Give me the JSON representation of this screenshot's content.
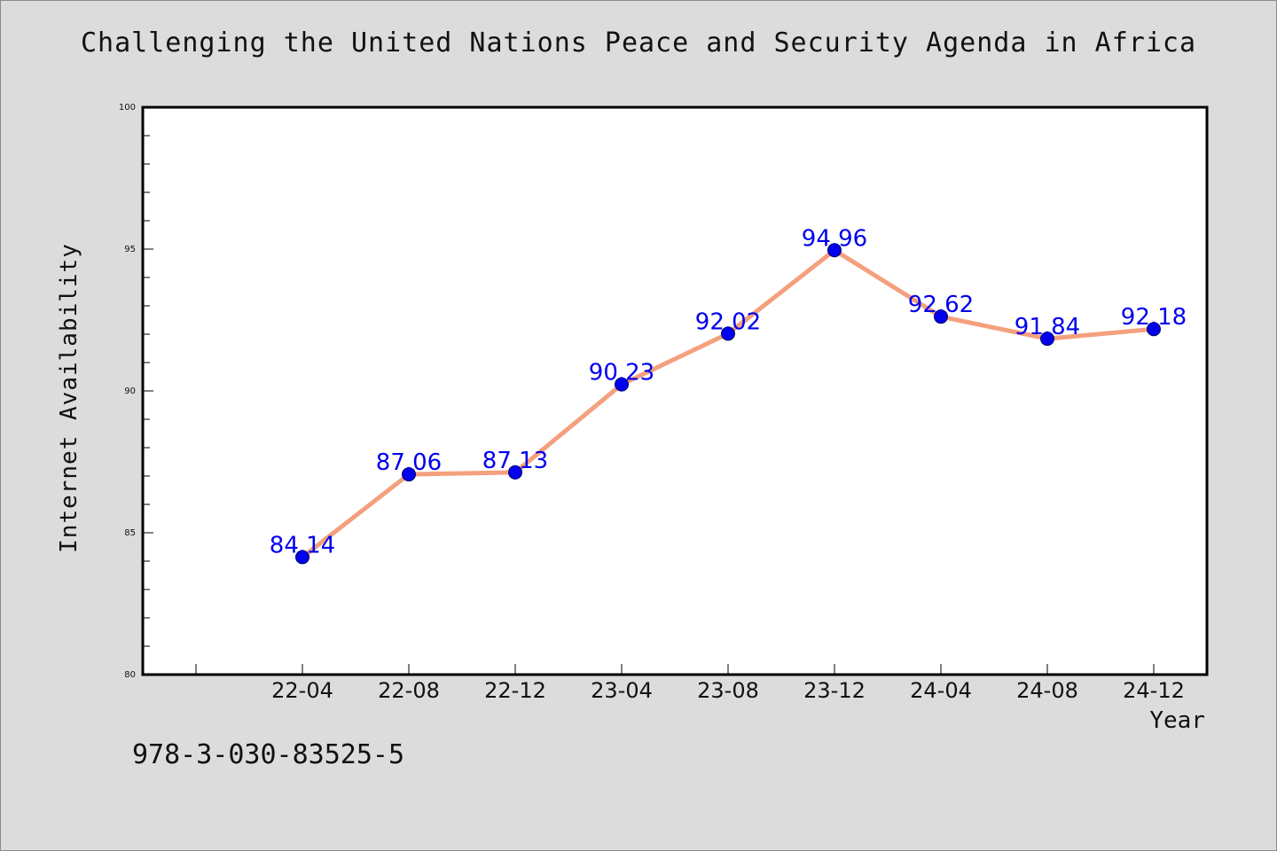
{
  "title": "Challenging the United Nations Peace and Security Agenda in Africa",
  "footer_text": "978-3-030-83525-5",
  "colors": {
    "background": "#dcdcdc",
    "plot_background": "#ffffff",
    "line": "#f4a07e",
    "marker": "#0000ee",
    "data_label": "#0000ee",
    "text": "#111111"
  },
  "chart_data": {
    "type": "line",
    "title": "Challenging the United Nations Peace and Security Agenda in Africa",
    "xlabel": "Year",
    "ylabel": "Internet Availability",
    "categories": [
      "22-04",
      "22-08",
      "22-12",
      "23-04",
      "23-08",
      "23-12",
      "24-04",
      "24-08",
      "24-12"
    ],
    "series": [
      {
        "values": [
          84.14,
          87.06,
          87.13,
          90.23,
          92.02,
          94.96,
          92.62,
          91.84,
          92.18
        ]
      }
    ],
    "data_labels": [
      "84.14",
      "87.06",
      "87.13",
      "90.23",
      "92.02",
      "94.96",
      "92.62",
      "91.84",
      "92.18"
    ],
    "ylim": [
      80,
      100
    ],
    "y_major_ticks": [
      80,
      85,
      90,
      95,
      100
    ],
    "y_minor_step": 1,
    "grid": false,
    "legend": "none"
  }
}
